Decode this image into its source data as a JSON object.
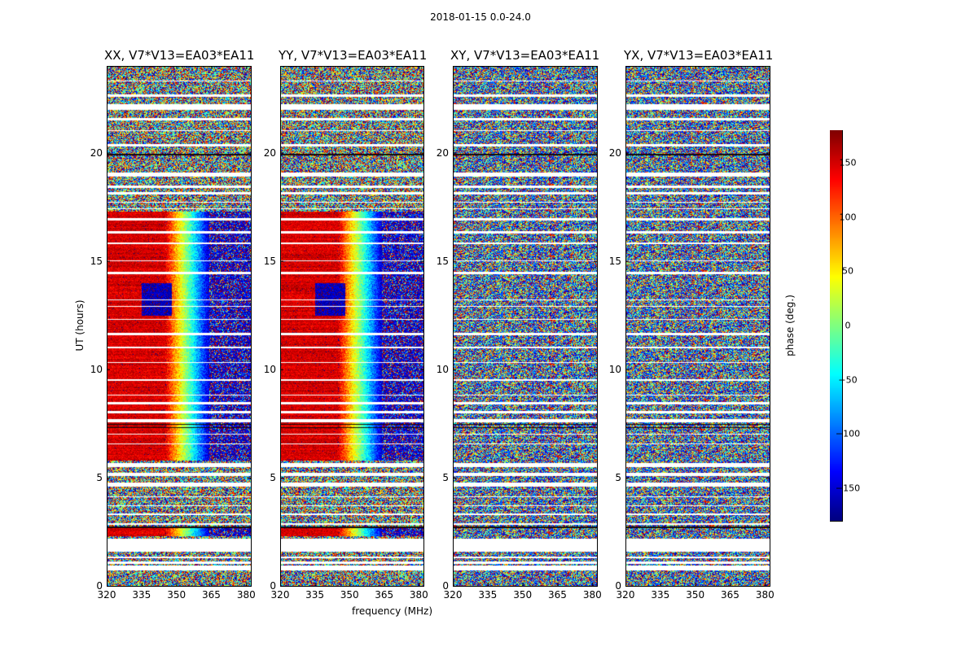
{
  "figure": {
    "suptitle": "2018-01-15 0.0-24.0"
  },
  "chart_data": {
    "type": "heatmap",
    "title": "2018-01-15 0.0-24.0",
    "xlabel": "frequency (MHz)",
    "ylabel": "UT (hours)",
    "xlim": [
      320,
      382
    ],
    "ylim": [
      0,
      24
    ],
    "xticks": [
      "320",
      "335",
      "350",
      "365",
      "380"
    ],
    "yticks": [
      "0",
      "5",
      "10",
      "15",
      "20"
    ],
    "xtick_values": [
      320,
      335,
      350,
      365,
      380
    ],
    "ytick_values": [
      0,
      5,
      10,
      15,
      20
    ],
    "colorbar": {
      "label": "phase (deg.)",
      "range": [
        -180,
        180
      ],
      "ticks": [
        "150",
        "100",
        "50",
        "0",
        "−50",
        "−100",
        "−150"
      ],
      "tick_values": [
        150,
        100,
        50,
        0,
        -50,
        -100,
        -150
      ],
      "colors": [
        "#00007f",
        "#0000ff",
        "#007fff",
        "#00ffff",
        "#7fff7f",
        "#ffff00",
        "#ff7f00",
        "#ff0000",
        "#7f0000"
      ]
    },
    "panels": [
      {
        "title": "XX, V7*V13=EA03*EA11",
        "pattern": "coherent"
      },
      {
        "title": "YY, V7*V13=EA03*EA11",
        "pattern": "coherent"
      },
      {
        "title": "XY, V7*V13=EA03*EA11",
        "pattern": "noise"
      },
      {
        "title": "YX, V7*V13=EA03*EA11",
        "pattern": "noise"
      }
    ]
  }
}
